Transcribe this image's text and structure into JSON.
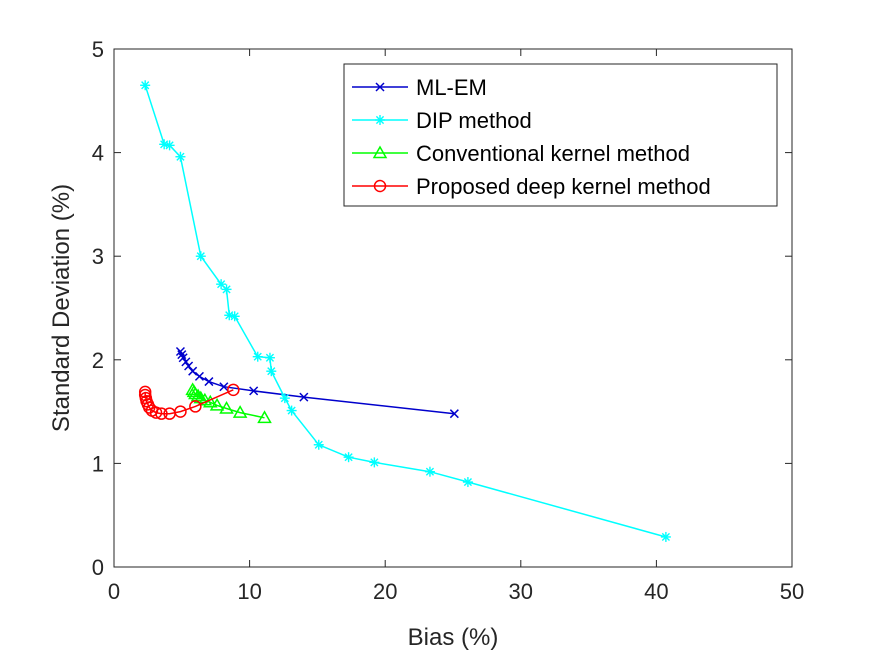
{
  "chart_data": {
    "type": "line",
    "title": "",
    "xlabel": "Bias (%)",
    "ylabel": "Standard Deviation (%)",
    "xlim": [
      0,
      50
    ],
    "ylim": [
      0,
      5
    ],
    "xticks": [
      0,
      10,
      20,
      30,
      40,
      50
    ],
    "yticks": [
      0,
      1,
      2,
      3,
      4,
      5
    ],
    "xtick_labels": [
      "0",
      "10",
      "20",
      "30",
      "40",
      "50"
    ],
    "ytick_labels": [
      "0",
      "1",
      "2",
      "3",
      "4",
      "5"
    ],
    "grid": false,
    "legend_position": "top-right",
    "series": [
      {
        "name": "ML-EM",
        "color": "#0000cc",
        "marker": "x",
        "x": [
          25.1,
          14.0,
          10.3,
          8.1,
          7.0,
          6.3,
          5.8,
          5.5,
          5.3,
          5.1,
          5.0,
          4.9
        ],
        "y": [
          1.48,
          1.64,
          1.7,
          1.74,
          1.79,
          1.84,
          1.89,
          1.94,
          1.98,
          2.02,
          2.05,
          2.08
        ]
      },
      {
        "name": "DIP method",
        "color": "#00ffff",
        "marker": "*",
        "x": [
          2.3,
          3.7,
          4.1,
          4.9,
          6.4,
          7.9,
          8.3,
          8.5,
          8.9,
          10.6,
          11.5,
          11.6,
          12.6,
          13.1,
          15.1,
          17.3,
          19.2,
          23.3,
          26.1,
          40.7
        ],
        "y": [
          4.65,
          4.08,
          4.07,
          3.96,
          3.0,
          2.73,
          2.68,
          2.43,
          2.42,
          2.03,
          2.02,
          1.89,
          1.63,
          1.51,
          1.18,
          1.06,
          1.01,
          0.92,
          0.82,
          0.29
        ]
      },
      {
        "name": "Conventional kernel method",
        "color": "#00ff00",
        "marker": "triangle",
        "x": [
          11.1,
          9.3,
          8.3,
          7.6,
          7.1,
          6.7,
          6.4,
          6.2,
          6.0,
          5.9,
          5.8
        ],
        "y": [
          1.44,
          1.49,
          1.53,
          1.56,
          1.59,
          1.61,
          1.63,
          1.65,
          1.67,
          1.69,
          1.71
        ]
      },
      {
        "name": "Proposed deep kernel method",
        "color": "#ff0000",
        "marker": "circle",
        "x": [
          8.8,
          6.0,
          4.9,
          4.1,
          3.5,
          3.1,
          2.8,
          2.6,
          2.5,
          2.4,
          2.35,
          2.3,
          2.3
        ],
        "y": [
          1.71,
          1.55,
          1.5,
          1.48,
          1.48,
          1.49,
          1.51,
          1.54,
          1.57,
          1.6,
          1.63,
          1.66,
          1.69
        ]
      }
    ]
  }
}
